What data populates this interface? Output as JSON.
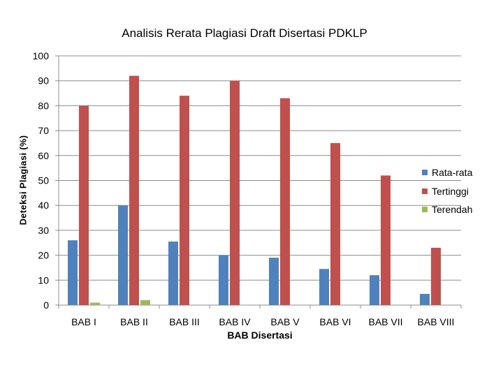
{
  "chart_data": {
    "type": "bar",
    "title": "Analisis Rerata Plagiasi Draft Disertasi PDKLP",
    "xlabel": "BAB Disertasi",
    "ylabel": "Deteksi Plagiasi (%)",
    "ylim": [
      0,
      100
    ],
    "yticks": [
      "0",
      "10",
      "20",
      "30",
      "40",
      "50",
      "60",
      "70",
      "80",
      "90",
      "100"
    ],
    "grid": true,
    "legend_position": "right",
    "categories": [
      "BAB I",
      "BAB II",
      "BAB III",
      "BAB IV",
      "BAB V",
      "BAB VI",
      "BAB VII",
      "BAB VIII"
    ],
    "series": [
      {
        "name": "Rata-rata",
        "color": "#4f81bd",
        "values": [
          26,
          40,
          25.5,
          20,
          19,
          14.5,
          12,
          4.5
        ]
      },
      {
        "name": "Tertinggi",
        "color": "#c0504d",
        "values": [
          80,
          92,
          84,
          90,
          83,
          65,
          52,
          23
        ]
      },
      {
        "name": "Terendah",
        "color": "#9bbb59",
        "values": [
          1,
          2,
          0,
          0,
          0,
          0,
          0,
          0
        ]
      }
    ]
  }
}
